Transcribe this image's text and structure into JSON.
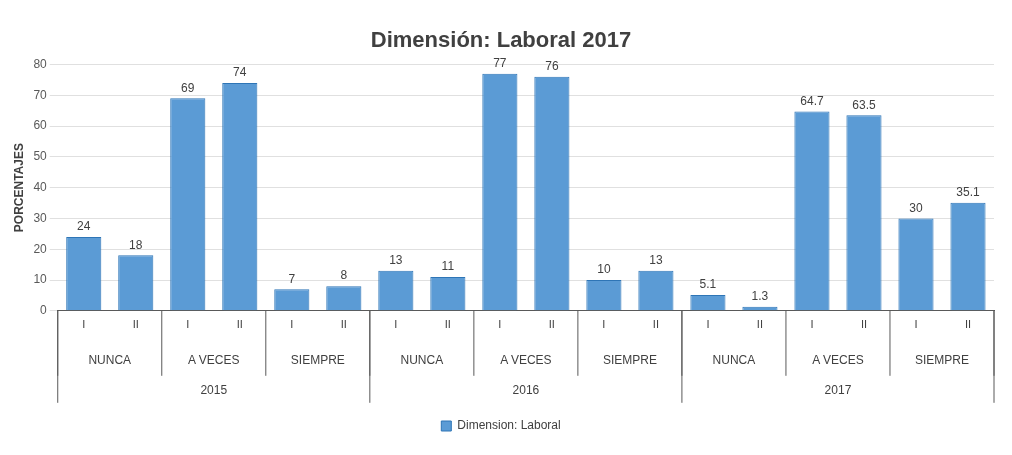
{
  "chart_data": {
    "type": "bar",
    "title": "Dimensión: Laboral 2017",
    "ylabel": "PORCENTAJES",
    "categories": [
      "I",
      "II",
      "I",
      "II",
      "I",
      "II",
      "I",
      "II",
      "I",
      "II",
      "I",
      "II",
      "I",
      "II",
      "I",
      "II",
      "I",
      "II"
    ],
    "series": [
      {
        "name": "Dimension: Laboral",
        "color": "#5b9bd5",
        "values": [
          24,
          18,
          69,
          74,
          7,
          8,
          13,
          11,
          77,
          76,
          10,
          13,
          5.1,
          1.3,
          64.7,
          63.5,
          30,
          35.1
        ]
      }
    ],
    "annotations": [
      "NUNCA",
      "A VECES",
      "SIEMPRE",
      "NUNCA",
      "A VECES",
      "SIEMPRE",
      "NUNCA",
      "A VECES",
      "SIEMPRE",
      "2015",
      "2016",
      "2017"
    ],
    "ylim": [
      0,
      80
    ],
    "yticks": [
      0,
      10,
      20,
      30,
      40,
      50,
      60,
      70,
      80
    ],
    "grid": "y",
    "data_labels": true,
    "legend": "bottom"
  }
}
